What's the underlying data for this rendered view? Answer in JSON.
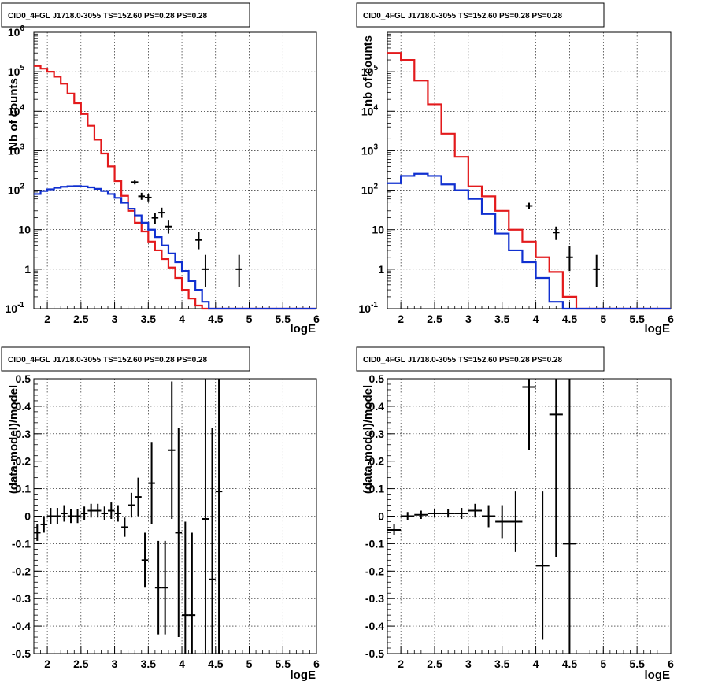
{
  "colors": {
    "data": "#000000",
    "model_total": "#e31a1c",
    "model_source": "#1030d0"
  },
  "chart_data": [
    {
      "type": "line",
      "title": "CID0_4FGL J1718.0-3055 TS=152.60 PS=0.28 PS=0.28",
      "xlabel": "logE",
      "ylabel": "Nb of counts",
      "xlim": [
        1.8,
        6.0
      ],
      "ylim": [
        0.1,
        1000000
      ],
      "yscale": "log",
      "grid": true,
      "x_ticks": [
        "2",
        "2.5",
        "3",
        "3.5",
        "4",
        "4.5",
        "5",
        "5.5",
        "6"
      ],
      "y_ticks": [
        "10^-1",
        "1",
        "10",
        "10^2",
        "10^3",
        "10^4",
        "10^5",
        "10^6"
      ],
      "bin_edges": [
        1.8,
        1.9,
        2.0,
        2.1,
        2.2,
        2.3,
        2.4,
        2.5,
        2.6,
        2.7,
        2.8,
        2.9,
        3.0,
        3.1,
        3.2,
        3.3,
        3.4,
        3.5,
        3.6,
        3.7,
        3.8,
        3.9,
        4.0,
        4.1,
        4.2,
        4.3,
        4.4,
        4.5,
        4.6,
        4.7,
        4.8,
        4.9,
        5.0,
        5.1,
        5.2,
        5.3,
        5.4,
        5.5,
        5.6,
        5.7,
        5.8,
        5.9,
        6.0
      ],
      "series": [
        {
          "name": "model",
          "color": "#e31a1c",
          "values": [
            140000,
            120000,
            100000,
            75000,
            50000,
            28000,
            16000,
            8500,
            4300,
            1900,
            850,
            400,
            170,
            72,
            30,
            15,
            9,
            5,
            3,
            1.8,
            1.1,
            0.6,
            0.3,
            0.18,
            0.12,
            0.1,
            0.1,
            0.1,
            0.1,
            0.1,
            0.1,
            0.1,
            0.1,
            0.1,
            0.1,
            0.1,
            0.1,
            0.1,
            0.1,
            0.1,
            0.1,
            0.1
          ]
        },
        {
          "name": "source",
          "color": "#1030d0",
          "values": [
            80,
            95,
            105,
            115,
            122,
            126,
            127,
            124,
            118,
            108,
            95,
            80,
            64,
            48,
            34,
            23,
            15,
            10,
            6.5,
            4,
            2.5,
            1.5,
            0.9,
            0.5,
            0.3,
            0.15,
            0.1,
            0.1,
            0.1,
            0.1,
            0.1,
            0.1,
            0.1,
            0.1,
            0.1,
            0.1,
            0.1,
            0.1,
            0.1,
            0.1,
            0.1,
            0.1
          ]
        }
      ],
      "points": [
        {
          "x": 3.3,
          "y": 160,
          "lo": 140,
          "hi": 185
        },
        {
          "x": 3.4,
          "y": 70,
          "lo": 57,
          "hi": 86
        },
        {
          "x": 3.5,
          "y": 65,
          "lo": 52,
          "hi": 80
        },
        {
          "x": 3.6,
          "y": 20,
          "lo": 14,
          "hi": 27
        },
        {
          "x": 3.7,
          "y": 27,
          "lo": 20,
          "hi": 36
        },
        {
          "x": 3.8,
          "y": 12,
          "lo": 8,
          "hi": 17
        },
        {
          "x": 4.25,
          "y": 5.5,
          "lo": 3.2,
          "hi": 9
        },
        {
          "x": 4.35,
          "y": 1.0,
          "lo": 0.35,
          "hi": 2.3
        },
        {
          "x": 4.85,
          "y": 1.0,
          "lo": 0.35,
          "hi": 2.3
        }
      ]
    },
    {
      "type": "line",
      "title": "CID0_4FGL J1718.0-3055 TS=152.60 PS=0.28 PS=0.28",
      "xlabel": "logE",
      "ylabel": "nb of counts",
      "xlim": [
        1.8,
        6.0
      ],
      "ylim": [
        0.1,
        1000000
      ],
      "yscale": "log",
      "grid": true,
      "x_ticks": [
        "2",
        "2.5",
        "3",
        "3.5",
        "4",
        "4.5",
        "5",
        "5.5",
        "6"
      ],
      "y_ticks": [
        "10^-1",
        "1",
        "10",
        "10^2",
        "10^3",
        "10^4",
        "10^5"
      ],
      "bin_edges": [
        1.8,
        2.0,
        2.2,
        2.4,
        2.6,
        2.8,
        3.0,
        3.2,
        3.4,
        3.6,
        3.8,
        4.0,
        4.2,
        4.4,
        4.6,
        4.8,
        5.0,
        5.2,
        5.4,
        5.6,
        5.8,
        6.0
      ],
      "series": [
        {
          "name": "model",
          "color": "#e31a1c",
          "values": [
            300000,
            200000,
            60000,
            15000,
            2700,
            700,
            125,
            70,
            30,
            10,
            5,
            2,
            0.85,
            0.2,
            0.1,
            0.1,
            0.1,
            0.1,
            0.1,
            0.1,
            0.1
          ]
        },
        {
          "name": "source",
          "color": "#1030d0",
          "values": [
            150,
            230,
            260,
            230,
            140,
            100,
            60,
            25,
            8,
            3,
            1.5,
            0.6,
            0.15,
            0.1,
            0.1,
            0.1,
            0.1,
            0.1,
            0.1,
            0.1,
            0.1
          ]
        }
      ],
      "points": [
        {
          "x": 3.9,
          "y": 40,
          "lo": 33,
          "hi": 48
        },
        {
          "x": 4.3,
          "y": 8.5,
          "lo": 5.5,
          "hi": 12
        },
        {
          "x": 4.5,
          "y": 2.0,
          "lo": 0.9,
          "hi": 3.8
        },
        {
          "x": 4.9,
          "y": 1.0,
          "lo": 0.35,
          "hi": 2.3
        }
      ]
    },
    {
      "type": "scatter",
      "title": "CID0_4FGL J1718.0-3055 TS=152.60 PS=0.28 PS=0.28",
      "xlabel": "logE",
      "ylabel": "(data-model)/model",
      "xlim": [
        1.8,
        6.0
      ],
      "ylim": [
        -0.5,
        0.5
      ],
      "grid": true,
      "x_ticks": [
        "2",
        "2.5",
        "3",
        "3.5",
        "4",
        "4.5",
        "5",
        "5.5",
        "6"
      ],
      "y_ticks": [
        "-0.5",
        "-0.4",
        "-0.3",
        "-0.2",
        "-0.1",
        "0",
        "0.1",
        "0.2",
        "0.3",
        "0.4",
        "0.5"
      ],
      "bin_half_width": 0.05,
      "points": [
        {
          "x": 1.85,
          "y": -0.06,
          "e": 0.03
        },
        {
          "x": 1.95,
          "y": -0.03,
          "e": 0.03
        },
        {
          "x": 2.05,
          "y": 0.0,
          "e": 0.03
        },
        {
          "x": 2.15,
          "y": 0.0,
          "e": 0.03
        },
        {
          "x": 2.25,
          "y": 0.01,
          "e": 0.03
        },
        {
          "x": 2.35,
          "y": 0.0,
          "e": 0.025
        },
        {
          "x": 2.45,
          "y": 0.0,
          "e": 0.025
        },
        {
          "x": 2.55,
          "y": 0.01,
          "e": 0.025
        },
        {
          "x": 2.65,
          "y": 0.02,
          "e": 0.025
        },
        {
          "x": 2.75,
          "y": 0.02,
          "e": 0.025
        },
        {
          "x": 2.85,
          "y": 0.01,
          "e": 0.025
        },
        {
          "x": 2.95,
          "y": 0.02,
          "e": 0.03
        },
        {
          "x": 3.05,
          "y": 0.01,
          "e": 0.03
        },
        {
          "x": 3.15,
          "y": -0.04,
          "e": 0.035
        },
        {
          "x": 3.25,
          "y": 0.04,
          "e": 0.045
        },
        {
          "x": 3.35,
          "y": 0.07,
          "e": 0.07
        },
        {
          "x": 3.45,
          "y": -0.16,
          "e": 0.1
        },
        {
          "x": 3.55,
          "y": 0.12,
          "e": 0.15
        },
        {
          "x": 3.65,
          "y": -0.26,
          "e": 0.17
        },
        {
          "x": 3.75,
          "y": -0.26,
          "e": 0.17
        },
        {
          "x": 3.85,
          "y": 0.24,
          "e": 0.25
        },
        {
          "x": 3.95,
          "y": -0.06,
          "e": 0.38
        },
        {
          "x": 4.05,
          "y": -0.36,
          "e": 0.34
        },
        {
          "x": 4.15,
          "y": -0.36,
          "e": 0.3
        },
        {
          "x": 4.35,
          "y": -0.01,
          "e": 0.6
        },
        {
          "x": 4.45,
          "y": -0.23,
          "e": 0.55
        },
        {
          "x": 4.55,
          "y": 0.09,
          "e": 0.65
        }
      ]
    },
    {
      "type": "scatter",
      "title": "CID0_4FGL J1718.0-3055 TS=152.60 PS=0.28 PS=0.28",
      "xlabel": "logE",
      "ylabel": "(data-model)/model",
      "xlim": [
        1.8,
        6.0
      ],
      "ylim": [
        -0.5,
        0.5
      ],
      "grid": true,
      "x_ticks": [
        "2",
        "2.5",
        "3",
        "3.5",
        "4",
        "4.5",
        "5",
        "5.5",
        "6"
      ],
      "y_ticks": [
        "-0.5",
        "-0.4",
        "-0.3",
        "-0.2",
        "-0.1",
        "0",
        "0.1",
        "0.2",
        "0.3",
        "0.4",
        "0.5"
      ],
      "bin_half_width": 0.1,
      "points": [
        {
          "x": 1.9,
          "y": -0.05,
          "e": 0.02
        },
        {
          "x": 2.1,
          "y": 0.0,
          "e": 0.015
        },
        {
          "x": 2.3,
          "y": 0.005,
          "e": 0.015
        },
        {
          "x": 2.5,
          "y": 0.01,
          "e": 0.015
        },
        {
          "x": 2.7,
          "y": 0.01,
          "e": 0.015
        },
        {
          "x": 2.9,
          "y": 0.01,
          "e": 0.02
        },
        {
          "x": 3.1,
          "y": 0.02,
          "e": 0.025
        },
        {
          "x": 3.3,
          "y": 0.0,
          "e": 0.04
        },
        {
          "x": 3.5,
          "y": -0.02,
          "e": 0.06
        },
        {
          "x": 3.7,
          "y": -0.02,
          "e": 0.11
        },
        {
          "x": 3.9,
          "y": 0.47,
          "e": 0.23
        },
        {
          "x": 4.1,
          "y": -0.18,
          "e": 0.27
        },
        {
          "x": 4.3,
          "y": 0.37,
          "e": 0.52
        },
        {
          "x": 4.5,
          "y": -0.1,
          "e": 0.6
        }
      ]
    }
  ]
}
